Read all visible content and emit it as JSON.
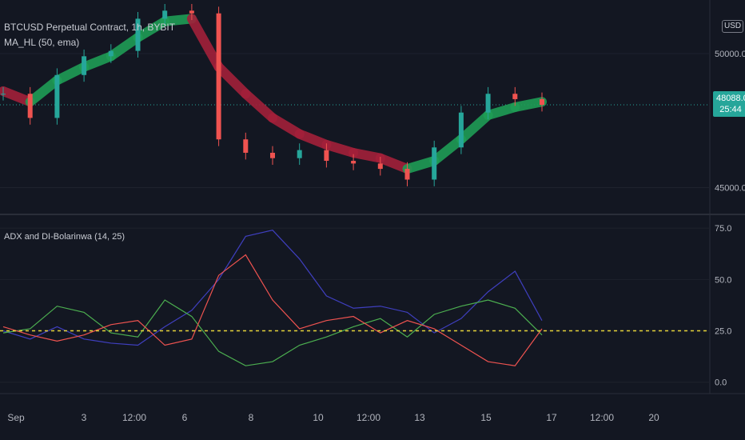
{
  "symbol": {
    "title": "BTCUSD Perpetual Contract, 1h, BYBIT"
  },
  "price_indicator": {
    "label": "MA_HL (50, ema)"
  },
  "osc_indicator": {
    "label": "ADX and DI-Bolarinwa (14, 25)"
  },
  "currency": "USD",
  "last_price": {
    "value": "48088.0",
    "countdown": "25:44"
  },
  "colors": {
    "background": "#131722",
    "up": "#26a69a",
    "down": "#ef5350",
    "ma_up": "#1f9d55",
    "ma_down": "#a3203a",
    "trend": "#e6d43a",
    "adx": "#3f3fbf",
    "di_plus": "#4caf50",
    "di_minus": "#ef5350"
  },
  "chart_data": [
    {
      "type": "line",
      "name": "price",
      "y_ticks": [
        "50000.0",
        "45000.0"
      ],
      "y_tick_values": [
        50000,
        45000
      ],
      "ylim": [
        44300,
        51700
      ],
      "last_price": 48088,
      "x_ticks": [
        "Sep",
        "3",
        "12:00",
        "6",
        "8",
        "10",
        "12:00",
        "13",
        "15",
        "17",
        "12:00",
        "20"
      ],
      "x": [
        "08-31",
        "09-01",
        "09-02",
        "09-03",
        "09-04",
        "09-05",
        "09-06",
        "09-07 06:00",
        "09-07 12:00",
        "09-07 18:00",
        "09-08",
        "09-09",
        "09-10",
        "09-11",
        "09-12",
        "09-13",
        "09-14",
        "09-15",
        "09-16",
        "09-16 12:00",
        "09-16 18:00"
      ],
      "close": [
        48500,
        47600,
        49200,
        49900,
        50100,
        51300,
        51600,
        51500,
        46800,
        46300,
        46100,
        46400,
        46000,
        45900,
        45700,
        45300,
        46500,
        47800,
        48500,
        48300,
        48088
      ],
      "ma": [
        48600,
        48200,
        49000,
        49500,
        49900,
        50600,
        51200,
        51300,
        49500,
        48500,
        47600,
        47000,
        46600,
        46300,
        46100,
        45700,
        46000,
        46800,
        47700,
        48000,
        48200
      ]
    },
    {
      "type": "line",
      "name": "oscillator",
      "y_ticks": [
        "75.0",
        "50.0",
        "25.0",
        "0.0"
      ],
      "y_tick_values": [
        75,
        50,
        25,
        0
      ],
      "ylim": [
        -4,
        77
      ],
      "level": 25,
      "x": [
        "08-31",
        "09-01",
        "09-02",
        "09-03",
        "09-04",
        "09-05",
        "09-06",
        "09-07 06:00",
        "09-07 12:00",
        "09-07 18:00",
        "09-08",
        "09-09",
        "09-10",
        "09-11",
        "09-12",
        "09-13",
        "09-14",
        "09-15",
        "09-16",
        "09-16 12:00",
        "09-16 18:00"
      ],
      "series": [
        {
          "key": "adx",
          "values": [
            25,
            21,
            27,
            21,
            19,
            18,
            27,
            35,
            50,
            71,
            74,
            60,
            42,
            36,
            37,
            34,
            24,
            31,
            44,
            54,
            30
          ]
        },
        {
          "key": "di_plus",
          "values": [
            24,
            26,
            37,
            34,
            24,
            22,
            40,
            32,
            15,
            8,
            10,
            18,
            22,
            27,
            31,
            22,
            33,
            37,
            40,
            36,
            23
          ]
        },
        {
          "key": "di_minus",
          "values": [
            27,
            23,
            20,
            23,
            28,
            30,
            18,
            21,
            52,
            62,
            40,
            26,
            30,
            32,
            24,
            30,
            26,
            18,
            10,
            8,
            26
          ]
        }
      ]
    }
  ]
}
